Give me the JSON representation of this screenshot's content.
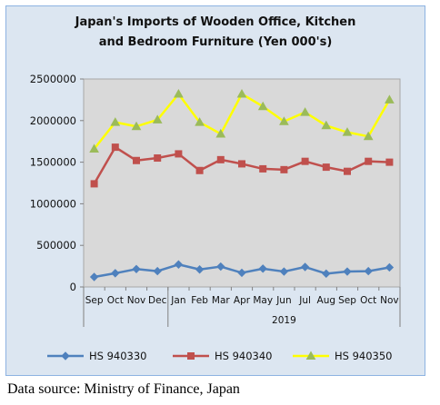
{
  "chart_data": {
    "type": "line",
    "title": "Japan's Imports of  Wooden  Office, Kitchen\nand Bedroom Furniture (Yen 000's)",
    "categories": [
      "Sep",
      "Oct",
      "Nov",
      "Dec",
      "Jan",
      "Feb",
      "Mar",
      "Apr",
      "May",
      "Jun",
      "Jul",
      "Aug",
      "Sep",
      "Oct",
      "Nov"
    ],
    "year_label": "2019",
    "ylim": [
      0,
      2500000
    ],
    "yticks": [
      "0",
      "500000",
      "1000000",
      "1500000",
      "2000000",
      "2500000"
    ],
    "ytick_values": [
      0,
      500000,
      1000000,
      1500000,
      2000000,
      2500000
    ],
    "grid": false,
    "legend_position": "bottom",
    "series": [
      {
        "name": "HS 940330",
        "color": "#4f81bd",
        "marker": "diamond",
        "values": [
          120000,
          165000,
          215000,
          190000,
          270000,
          210000,
          245000,
          170000,
          220000,
          185000,
          240000,
          160000,
          185000,
          190000,
          235000
        ]
      },
      {
        "name": "HS 940340",
        "color": "#c0504d",
        "marker": "square",
        "values": [
          1240000,
          1680000,
          1520000,
          1550000,
          1600000,
          1400000,
          1530000,
          1480000,
          1420000,
          1410000,
          1510000,
          1440000,
          1390000,
          1510000,
          1500000
        ]
      },
      {
        "name": "HS 940350",
        "color": "#ffff00",
        "marker": "triangle",
        "values": [
          1660000,
          1980000,
          1930000,
          2010000,
          2320000,
          1980000,
          1840000,
          2320000,
          2170000,
          1990000,
          2100000,
          1940000,
          1860000,
          1810000,
          2250000
        ]
      }
    ]
  },
  "footer": {
    "source": "Data source: Ministry of Finance, Japan"
  }
}
